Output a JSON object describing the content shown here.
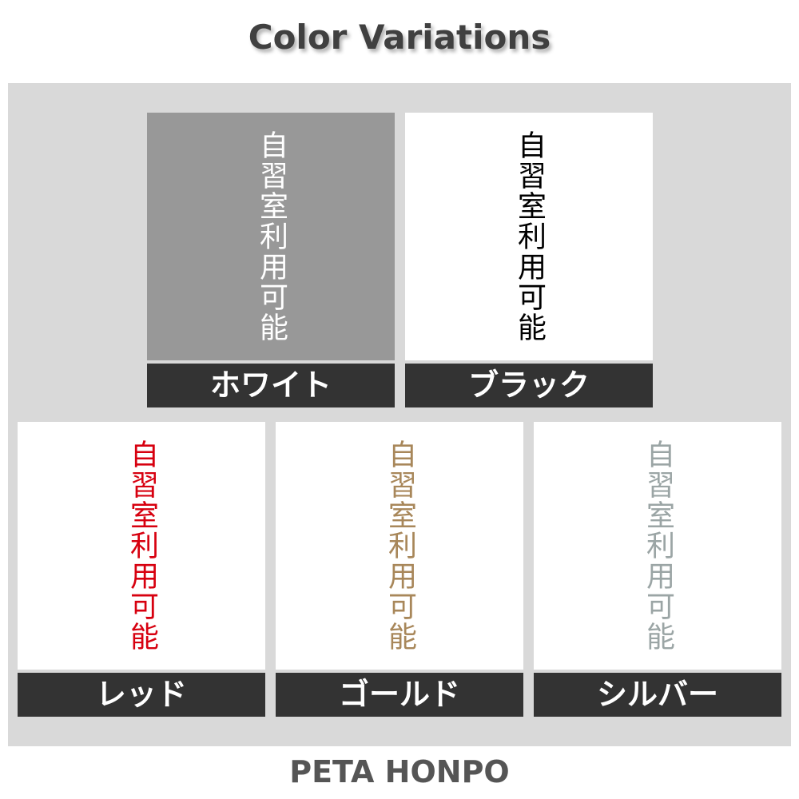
{
  "title": "Color Variations",
  "sign_text": "自習室利用可能",
  "variants": [
    {
      "label": "ホワイト",
      "text_color": "#ffffff",
      "background": "#989898"
    },
    {
      "label": "ブラック",
      "text_color": "#000000",
      "background": "#ffffff"
    },
    {
      "label": "レッド",
      "text_color": "#d7000f",
      "background": "#ffffff"
    },
    {
      "label": "ゴールド",
      "text_color": "#a8875a",
      "background": "#ffffff"
    },
    {
      "label": "シルバー",
      "text_color": "#9ba5a5",
      "background": "#ffffff"
    }
  ],
  "footer": "PETA HONPO"
}
